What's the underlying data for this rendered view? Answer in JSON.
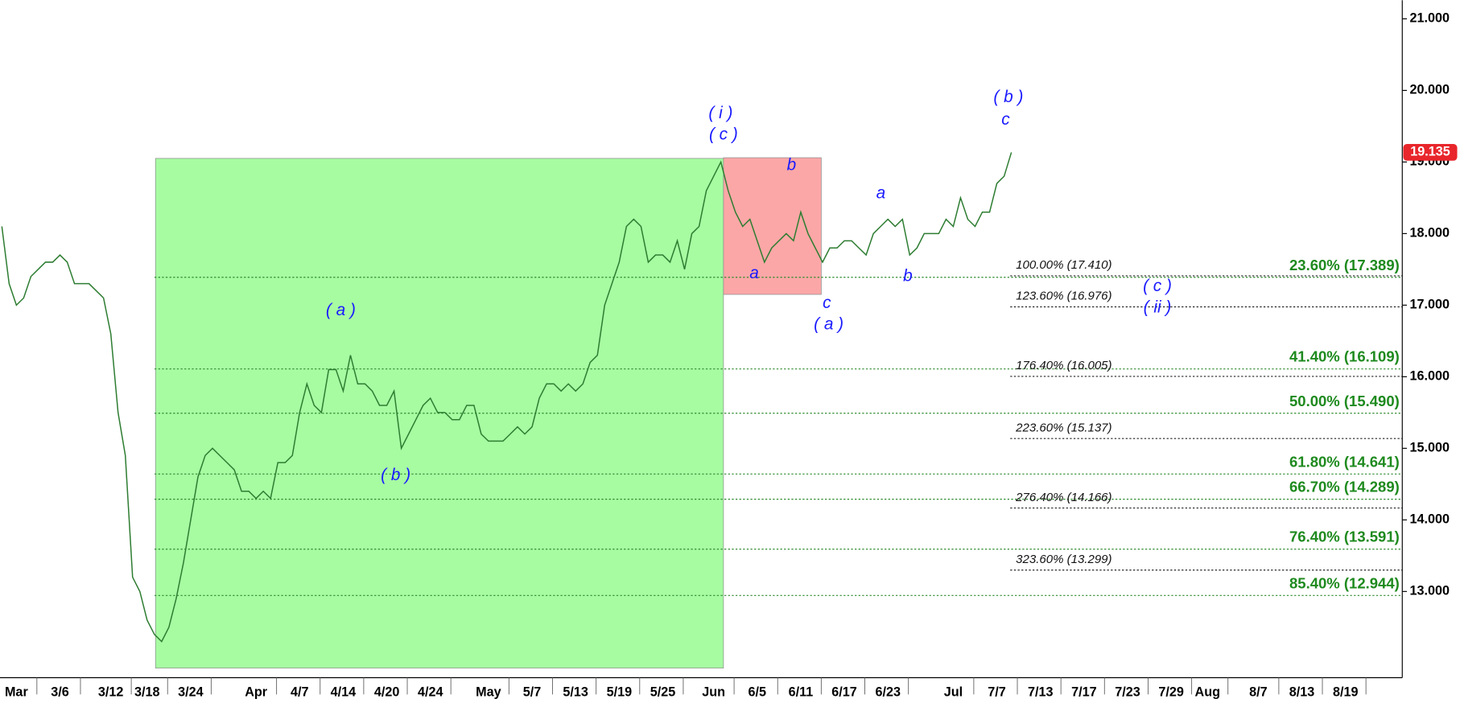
{
  "chart_data": {
    "type": "line",
    "categories": [
      null,
      null,
      "Mar",
      null,
      null,
      null,
      null,
      null,
      "3/6",
      null,
      null,
      null,
      null,
      null,
      null,
      "3/12",
      null,
      null,
      null,
      null,
      "3/18",
      null,
      null,
      null,
      null,
      null,
      "3/24",
      null,
      null,
      null,
      null,
      null,
      null,
      null,
      null,
      "Apr",
      null,
      null,
      null,
      null,
      null,
      "4/7",
      null,
      null,
      null,
      null,
      null,
      "4/14",
      null,
      null,
      null,
      null,
      null,
      "4/20",
      null,
      null,
      null,
      null,
      null,
      "4/24",
      null,
      null,
      null,
      null,
      null,
      null,
      null,
      "May",
      null,
      null,
      null,
      null,
      null,
      "5/7",
      null,
      null,
      null,
      null,
      null,
      "5/13",
      null,
      null,
      null,
      null,
      null,
      "5/19",
      null,
      null,
      null,
      null,
      null,
      "5/25",
      null,
      null,
      null,
      null,
      null,
      null,
      "Jun",
      null,
      null,
      null,
      null,
      null,
      "6/5",
      null,
      null,
      null,
      null,
      null,
      "6/11",
      null,
      null,
      null,
      null,
      null,
      "6/17",
      null,
      null,
      null,
      null,
      null,
      "6/23",
      null,
      null,
      null,
      null,
      null,
      null,
      null,
      null,
      "Jul",
      null,
      null,
      null,
      null,
      null,
      "7/7",
      null,
      null,
      null,
      null,
      null,
      "7/13",
      null,
      null,
      null,
      null,
      null,
      "7/17",
      null,
      null,
      null,
      null,
      null,
      "7/23",
      null,
      null,
      null,
      null,
      null,
      "7/29",
      null,
      null,
      null,
      null,
      "Aug",
      null,
      null,
      null,
      null,
      null,
      null,
      "8/7",
      null,
      null,
      null,
      null,
      null,
      "8/13",
      null,
      null,
      null,
      null,
      null,
      "8/19",
      null,
      null,
      null,
      null,
      null,
      null
    ],
    "series": [
      {
        "color": "#2e7d32",
        "values": [
          18.1,
          17.3,
          17.0,
          17.1,
          17.4,
          17.5,
          17.6,
          17.6,
          17.7,
          17.6,
          17.3,
          17.3,
          17.3,
          17.2,
          17.1,
          16.6,
          15.5,
          14.9,
          13.2,
          13.0,
          12.6,
          12.4,
          12.3,
          12.5,
          12.9,
          13.4,
          14.0,
          14.6,
          14.9,
          15.0,
          14.9,
          14.8,
          14.7,
          14.4,
          14.4,
          14.3,
          14.4,
          14.3,
          14.8,
          14.8,
          14.9,
          15.5,
          15.9,
          15.6,
          15.5,
          16.1,
          16.1,
          15.8,
          16.3,
          15.9,
          15.9,
          15.8,
          15.6,
          15.6,
          15.8,
          15.0,
          15.2,
          15.4,
          15.6,
          15.7,
          15.5,
          15.5,
          15.4,
          15.4,
          15.6,
          15.6,
          15.2,
          15.1,
          15.1,
          15.1,
          15.2,
          15.3,
          15.2,
          15.3,
          15.7,
          15.9,
          15.9,
          15.8,
          15.9,
          15.8,
          15.9,
          16.2,
          16.3,
          17.0,
          17.3,
          17.6,
          18.1,
          18.2,
          18.1,
          17.6,
          17.7,
          17.7,
          17.6,
          17.9,
          17.5,
          18.0,
          18.1,
          18.6,
          18.8,
          19.0,
          18.6,
          18.3,
          18.1,
          18.2,
          17.9,
          17.6,
          17.8,
          17.9,
          18.0,
          17.9,
          18.3,
          18.0,
          17.8,
          17.6,
          17.8,
          17.8,
          17.9,
          17.9,
          17.8,
          17.7,
          18.0,
          18.1,
          18.2,
          18.1,
          18.2,
          17.7,
          17.8,
          18.0,
          18.0,
          18.0,
          18.2,
          18.1,
          18.5,
          18.2,
          18.1,
          18.3,
          18.3,
          18.7,
          18.8,
          19.135,
          null,
          null,
          null,
          null,
          null,
          null,
          null,
          null,
          null,
          null,
          null,
          null,
          null,
          null,
          null,
          null,
          null,
          null,
          null,
          null,
          null,
          null,
          null,
          null,
          null,
          null,
          null,
          null,
          null,
          null,
          null,
          null,
          null,
          null,
          null,
          null,
          null,
          null,
          null,
          null,
          null,
          null,
          null,
          null,
          null,
          null,
          null,
          null,
          null,
          null,
          null,
          null
        ]
      }
    ],
    "ylim": [
      11.51,
      21.13
    ],
    "yticks": [
      {
        "value": 13,
        "label": "13.000"
      },
      {
        "value": 14,
        "label": "14.000"
      },
      {
        "value": 15,
        "label": "15.000"
      },
      {
        "value": 16,
        "label": "16.000"
      },
      {
        "value": 17,
        "label": "17.000"
      },
      {
        "value": 18,
        "label": "18.000"
      },
      {
        "value": 19,
        "label": "19.000"
      },
      {
        "value": 20,
        "label": "20.000"
      },
      {
        "value": 21,
        "label": "21.000"
      }
    ],
    "last_price": {
      "value": 19.135,
      "label": "19.135"
    },
    "zones": [
      {
        "top": 19.05,
        "bottom": 11.93,
        "color": "#a7fca2"
      },
      {
        "top": 19.06,
        "bottom": 17.15,
        "color": "#fca7a7"
      }
    ],
    "fib_retracements": [
      {
        "value": 17.389,
        "label": "23.60% (17.389)"
      },
      {
        "value": 16.109,
        "label": "41.40% (16.109)"
      },
      {
        "value": 15.49,
        "label": "50.00% (15.490)"
      },
      {
        "value": 14.641,
        "label": "61.80% (14.641)"
      },
      {
        "value": 14.289,
        "label": "66.70% (14.289)"
      },
      {
        "value": 13.591,
        "label": "76.40% (13.591)"
      },
      {
        "value": 12.944,
        "label": "85.40% (12.944)"
      }
    ],
    "fib_extensions": [
      {
        "value": 17.41,
        "label": "100.00% (17.410)"
      },
      {
        "value": 16.976,
        "label": "123.60% (16.976)"
      },
      {
        "value": 16.005,
        "label": "176.40% (16.005)"
      },
      {
        "value": 15.137,
        "label": "223.60% (15.137)"
      },
      {
        "value": 14.166,
        "label": "276.40% (14.166)"
      },
      {
        "value": 13.299,
        "label": "323.60% (13.299)"
      }
    ],
    "wave_labels": [
      "( i )",
      "( c )",
      "( a )",
      "( b )",
      "a",
      "b",
      "c",
      "( a )",
      "a",
      "b",
      "( b )",
      "c",
      "( c )",
      "( ii )"
    ]
  }
}
